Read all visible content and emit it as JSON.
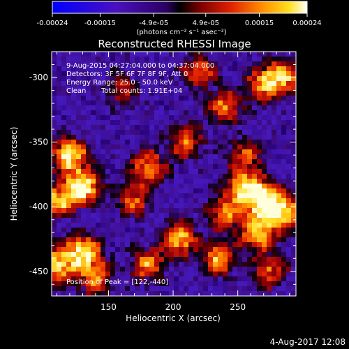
{
  "colorbar": {
    "ticks": [
      "-0.00024",
      "-0.00015",
      "-4.9e-05",
      "4.9e-05",
      "0.00015",
      "0.00024"
    ],
    "tick_values": [
      -0.00024,
      -0.00015,
      -4.9e-05,
      4.9e-05,
      0.00015,
      0.00024
    ],
    "range": [
      -0.00024,
      0.00024
    ],
    "units": "(photons cm⁻² s⁻¹ asec⁻²)"
  },
  "chart_data": {
    "type": "heatmap",
    "title": "Reconstructed RHESSI Image",
    "xlabel": "Heliocentric X (arcsec)",
    "ylabel": "Heliocentric Y (arcsec)",
    "xlim": [
      106,
      295
    ],
    "ylim": [
      -469,
      -280
    ],
    "xticks": [
      150,
      200,
      250
    ],
    "yticks": [
      -300,
      -350,
      -400,
      -450
    ],
    "colormap": "rhessi-blue-purple-red-yellow-white",
    "peak_position": [
      122,
      -440
    ],
    "hotspots": [
      {
        "x": 270,
        "y": -395,
        "v": 1.0
      },
      {
        "x": 255,
        "y": -385,
        "v": 0.8
      },
      {
        "x": 285,
        "y": -405,
        "v": 0.8
      },
      {
        "x": 265,
        "y": -420,
        "v": 0.75
      },
      {
        "x": 240,
        "y": -405,
        "v": 0.6
      },
      {
        "x": 120,
        "y": -360,
        "v": 0.85
      },
      {
        "x": 130,
        "y": -385,
        "v": 0.95
      },
      {
        "x": 110,
        "y": -395,
        "v": 0.7
      },
      {
        "x": 130,
        "y": -435,
        "v": 0.85
      },
      {
        "x": 110,
        "y": -445,
        "v": 0.75
      },
      {
        "x": 205,
        "y": -425,
        "v": 0.75
      },
      {
        "x": 235,
        "y": -440,
        "v": 0.65
      },
      {
        "x": 180,
        "y": -370,
        "v": 0.6
      },
      {
        "x": 170,
        "y": -395,
        "v": 0.5
      },
      {
        "x": 270,
        "y": -305,
        "v": 0.6
      },
      {
        "x": 285,
        "y": -300,
        "v": 0.65
      },
      {
        "x": 210,
        "y": -350,
        "v": 0.55
      },
      {
        "x": 240,
        "y": -322,
        "v": 0.55
      },
      {
        "x": 220,
        "y": -295,
        "v": 0.5
      },
      {
        "x": 255,
        "y": -360,
        "v": 0.45
      },
      {
        "x": 140,
        "y": -455,
        "v": 0.6
      },
      {
        "x": 180,
        "y": -445,
        "v": 0.55
      },
      {
        "x": 275,
        "y": -450,
        "v": 0.5
      },
      {
        "x": 160,
        "y": -310,
        "v": 0.35
      }
    ],
    "annotations": {
      "time": "9-Aug-2015 04:27:04.000 to 04:37:04.000",
      "detectors": "Detectors: 3F 5F 6F 7F 8F 9F, Att 0",
      "energy": "Energy Range: 25.0 - 50.0 keV",
      "algorithm": "Clean",
      "counts": "Total counts: 1.91E+04",
      "peak": "Position of Peak = [122,-440]"
    }
  },
  "footer": {
    "timestamp": "4-Aug-2017 12:08"
  }
}
